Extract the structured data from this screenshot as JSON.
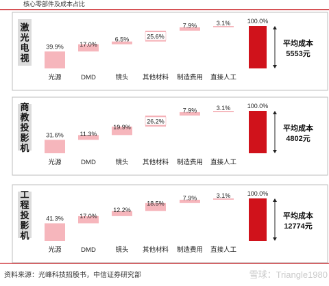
{
  "header_title": "核心零部件及成本占比",
  "footer": {
    "source": "资料来源：光峰科技招股书，中信证券研究部",
    "watermark": "雪球：Triangle1980"
  },
  "colors": {
    "accent_red": "#d1181e",
    "header_line": "#c8181e",
    "bar_pink": "#f6b6bc",
    "total_red": "#d0121b",
    "panel_label_bg": "#dcdcdc"
  },
  "chart_data": [
    {
      "type": "bar",
      "subtype": "waterfall",
      "panel_label": "激光电视",
      "categories": [
        "光源",
        "DMD",
        "镜头",
        "其他材料",
        "制造费用",
        "直接人工",
        ""
      ],
      "values": [
        39.9,
        17.0,
        6.5,
        25.6,
        7.9,
        3.1,
        100.0
      ],
      "value_labels": [
        "39.9%",
        "17.0%",
        "6.5%",
        "25.6%",
        "7.9%",
        "3.1%",
        "100.0%"
      ],
      "ylim": [
        0,
        100
      ],
      "total_label": "平均成本",
      "total_value": "5553元"
    },
    {
      "type": "bar",
      "subtype": "waterfall",
      "panel_label": "商教投影机",
      "categories": [
        "光源",
        "DMD",
        "镜头",
        "其他材料",
        "制造费用",
        "直接人工",
        ""
      ],
      "values": [
        31.6,
        11.3,
        19.9,
        26.2,
        7.9,
        3.1,
        100.0
      ],
      "value_labels": [
        "31.6%",
        "11.3%",
        "19.9%",
        "26.2%",
        "7.9%",
        "3.1%",
        "100.0%"
      ],
      "ylim": [
        0,
        100
      ],
      "total_label": "平均成本",
      "total_value": "4802元"
    },
    {
      "type": "bar",
      "subtype": "waterfall",
      "panel_label": "工程投影机",
      "categories": [
        "光源",
        "DMD",
        "镜头",
        "其他材料",
        "制造费用",
        "直接人工",
        ""
      ],
      "values": [
        41.3,
        17.0,
        12.2,
        18.5,
        7.9,
        3.1,
        100.0
      ],
      "value_labels": [
        "41.3%",
        "17.0%",
        "12.2%",
        "18.5%",
        "7.9%",
        "3.1%",
        "100.0%"
      ],
      "ylim": [
        0,
        100
      ],
      "total_label": "平均成本",
      "total_value": "12774元"
    }
  ]
}
